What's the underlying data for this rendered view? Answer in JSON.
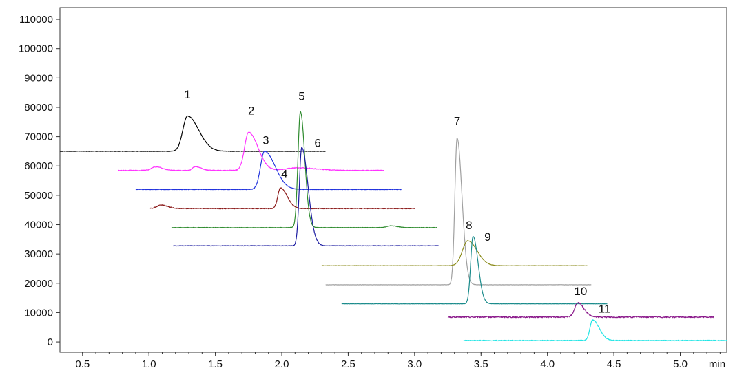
{
  "chart_data": {
    "type": "line",
    "xlabel": "",
    "ylabel": "",
    "x_unit": "min",
    "xlim": [
      0.33,
      5.35
    ],
    "ylim": [
      -3500,
      114000
    ],
    "x_ticks": [
      0.5,
      1.0,
      1.5,
      2.0,
      2.5,
      3.0,
      3.5,
      4.0,
      4.5,
      5.0
    ],
    "x_tick_labels": [
      "0.5",
      "1.0",
      "1.5",
      "2.0",
      "2.5",
      "3.0",
      "3.5",
      "4.0",
      "4.5",
      "5.0"
    ],
    "y_ticks": [
      0,
      10000,
      20000,
      30000,
      40000,
      50000,
      60000,
      70000,
      80000,
      90000,
      100000,
      110000
    ],
    "y_tick_labels": [
      "0",
      "10000",
      "20000",
      "30000",
      "40000",
      "50000",
      "60000",
      "70000",
      "80000",
      "90000",
      "100000",
      "110000"
    ],
    "grid": false,
    "legend": "none",
    "series": [
      {
        "label": "1",
        "color": "#000000",
        "x_start": 0.33,
        "x_end": 2.33,
        "baseline": 65000,
        "peaks": [
          {
            "x": 1.29,
            "height": 12000,
            "width": 0.035,
            "tail": 0.05
          }
        ],
        "noise": 150
      },
      {
        "label": "2",
        "color": "#ff33ff",
        "x_start": 0.77,
        "x_end": 2.77,
        "baseline": 58500,
        "peaks": [
          {
            "x": 1.75,
            "height": 13000,
            "width": 0.03,
            "tail": 0.04
          },
          {
            "x": 1.05,
            "height": 1200,
            "width": 0.03,
            "tail": 0.02
          },
          {
            "x": 1.35,
            "height": 1300,
            "width": 0.02,
            "tail": 0.02
          },
          {
            "x": 2.12,
            "height": 900,
            "width": 0.08,
            "tail": 0.05
          }
        ],
        "noise": 250
      },
      {
        "label": "3",
        "color": "#2233dd",
        "x_start": 0.9,
        "x_end": 2.9,
        "baseline": 52000,
        "peaks": [
          {
            "x": 1.87,
            "height": 13000,
            "width": 0.03,
            "tail": 0.05
          }
        ],
        "noise": 150
      },
      {
        "label": "4",
        "color": "#8b1a1a",
        "x_start": 1.01,
        "x_end": 3.0,
        "baseline": 45500,
        "peaks": [
          {
            "x": 1.99,
            "height": 7000,
            "width": 0.02,
            "tail": 0.03
          },
          {
            "x": 1.09,
            "height": 1200,
            "width": 0.03,
            "tail": 0.02
          }
        ],
        "noise": 250
      },
      {
        "label": "5",
        "color": "#2e8b2e",
        "x_start": 1.17,
        "x_end": 3.17,
        "baseline": 39000,
        "peaks": [
          {
            "x": 2.14,
            "height": 39500,
            "width": 0.018,
            "tail": 0.015
          },
          {
            "x": 2.82,
            "height": 600,
            "width": 0.03,
            "tail": 0.02
          }
        ],
        "noise": 150
      },
      {
        "label": "6",
        "color": "#1a1aa0",
        "x_start": 1.18,
        "x_end": 3.18,
        "baseline": 32800,
        "peaks": [
          {
            "x": 2.15,
            "height": 33500,
            "width": 0.018,
            "tail": 0.03
          }
        ],
        "noise": 150
      },
      {
        "label": "7",
        "color": "#a0a0a0",
        "x_start": 2.33,
        "x_end": 4.33,
        "baseline": 19500,
        "peaks": [
          {
            "x": 3.32,
            "height": 50000,
            "width": 0.017,
            "tail": 0.02
          }
        ],
        "noise": 100
      },
      {
        "label": "8",
        "color": "#8b8b1a",
        "x_start": 2.3,
        "x_end": 4.3,
        "baseline": 26000,
        "peaks": [
          {
            "x": 3.4,
            "height": 8500,
            "width": 0.04,
            "tail": 0.03
          }
        ],
        "noise": 100
      },
      {
        "label": "9",
        "color": "#1a8b8b",
        "x_start": 2.45,
        "x_end": 4.45,
        "baseline": 13000,
        "peaks": [
          {
            "x": 3.44,
            "height": 23000,
            "width": 0.018,
            "tail": 0.02
          }
        ],
        "noise": 100
      },
      {
        "label": "10",
        "color": "#8b1a8b",
        "x_start": 3.25,
        "x_end": 5.25,
        "baseline": 8500,
        "peaks": [
          {
            "x": 4.23,
            "height": 4800,
            "width": 0.025,
            "tail": 0.02
          }
        ],
        "noise": 450
      },
      {
        "label": "11",
        "color": "#22e5e5",
        "x_start": 3.37,
        "x_end": 5.35,
        "baseline": 500,
        "peaks": [
          {
            "x": 4.34,
            "height": 7000,
            "width": 0.02,
            "tail": 0.03
          }
        ],
        "noise": 250
      }
    ],
    "peak_labels": [
      {
        "text": "1",
        "x": 1.29,
        "y": 83000
      },
      {
        "text": "2",
        "x": 1.77,
        "y": 77500
      },
      {
        "text": "3",
        "x": 1.88,
        "y": 67500
      },
      {
        "text": "4",
        "x": 2.02,
        "y": 56000
      },
      {
        "text": "5",
        "x": 2.15,
        "y": 82500
      },
      {
        "text": "6",
        "x": 2.27,
        "y": 66500
      },
      {
        "text": "7",
        "x": 3.32,
        "y": 74000
      },
      {
        "text": "8",
        "x": 3.41,
        "y": 38500
      },
      {
        "text": "9",
        "x": 3.55,
        "y": 34500
      },
      {
        "text": "10",
        "x": 4.25,
        "y": 16000
      },
      {
        "text": "11",
        "x": 4.43,
        "y": 10000
      }
    ]
  }
}
